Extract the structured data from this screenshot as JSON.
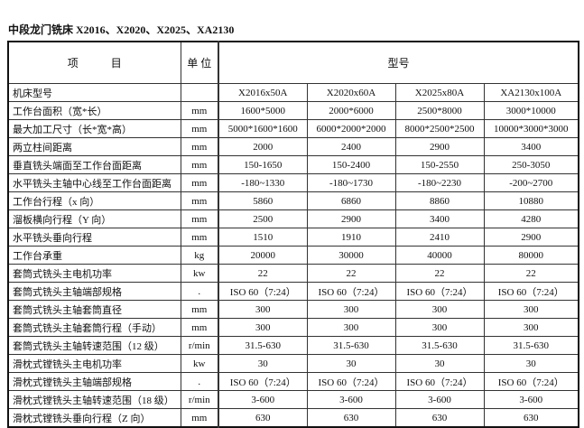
{
  "title": "中段龙门铣床 X2016、X2020、X2025、XA2130",
  "header": {
    "item": "项　　　目",
    "unit": "单 位",
    "model": "型号"
  },
  "rows": [
    {
      "item": "机床型号",
      "unit": "",
      "values": [
        "X2016x50A",
        "X2020x60A",
        "X2025x80A",
        "XA2130x100A"
      ]
    },
    {
      "item": "工作台面积（宽*长）",
      "unit": "mm",
      "values": [
        "1600*5000",
        "2000*6000",
        "2500*8000",
        "3000*10000"
      ]
    },
    {
      "item": "最大加工尺寸（长*宽*高）",
      "unit": "mm",
      "values": [
        "5000*1600*1600",
        "6000*2000*2000",
        "8000*2500*2500",
        "10000*3000*3000"
      ]
    },
    {
      "item": "两立柱间距离",
      "unit": "mm",
      "values": [
        "2000",
        "2400",
        "2900",
        "3400"
      ]
    },
    {
      "item": "垂直铣头端面至工作台面距离",
      "unit": "mm",
      "values": [
        "150-1650",
        "150-2400",
        "150-2550",
        "250-3050"
      ]
    },
    {
      "item": "水平铣头主轴中心线至工作台面距离",
      "unit": "mm",
      "values": [
        "-180~1330",
        "-180~1730",
        "-180~2230",
        "-200~2700"
      ]
    },
    {
      "item": "工作台行程（x 向）",
      "unit": "mm",
      "values": [
        "5860",
        "6860",
        "8860",
        "10880"
      ]
    },
    {
      "item": "溜板横向行程（Y 向）",
      "unit": "mm",
      "values": [
        "2500",
        "2900",
        "3400",
        "4280"
      ]
    },
    {
      "item": "水平铣头垂向行程",
      "unit": "mm",
      "values": [
        "1510",
        "1910",
        "2410",
        "2900"
      ]
    },
    {
      "item": "工作台承重",
      "unit": "kg",
      "values": [
        "20000",
        "30000",
        "40000",
        "80000"
      ]
    },
    {
      "item": "套筒式铣头主电机功率",
      "unit": "kw",
      "values": [
        "22",
        "22",
        "22",
        "22"
      ]
    },
    {
      "item": "套筒式铣头主轴端部规格",
      "unit": ".",
      "values": [
        "ISO 60（7:24）",
        "ISO 60（7:24）",
        "ISO 60（7:24）",
        "ISO 60（7:24）"
      ]
    },
    {
      "item": "套筒式铣头主轴套筒直径",
      "unit": "mm",
      "values": [
        "300",
        "300",
        "300",
        "300"
      ]
    },
    {
      "item": "套筒式铣头主轴套筒行程（手动）",
      "unit": "mm",
      "values": [
        "300",
        "300",
        "300",
        "300"
      ]
    },
    {
      "item": "套筒式铣头主轴转速范围（12 级）",
      "unit": "r/min",
      "values": [
        "31.5-630",
        "31.5-630",
        "31.5-630",
        "31.5-630"
      ]
    },
    {
      "item": "滑枕式镗铣头主电机功率",
      "unit": "kw",
      "values": [
        "30",
        "30",
        "30",
        "30"
      ]
    },
    {
      "item": "滑枕式镗铣头主轴端部规格",
      "unit": ".",
      "values": [
        "ISO 60（7:24）",
        "ISO 60（7:24）",
        "ISO 60（7:24）",
        "ISO 60（7:24）"
      ]
    },
    {
      "item": "滑枕式镗铣头主轴转速范围（18 级）",
      "unit": "r/min",
      "values": [
        "3-600",
        "3-600",
        "3-600",
        "3-600"
      ]
    },
    {
      "item": "滑枕式镗铣头垂向行程（Z 向）",
      "unit": "mm",
      "values": [
        "630",
        "630",
        "630",
        "630"
      ]
    }
  ]
}
